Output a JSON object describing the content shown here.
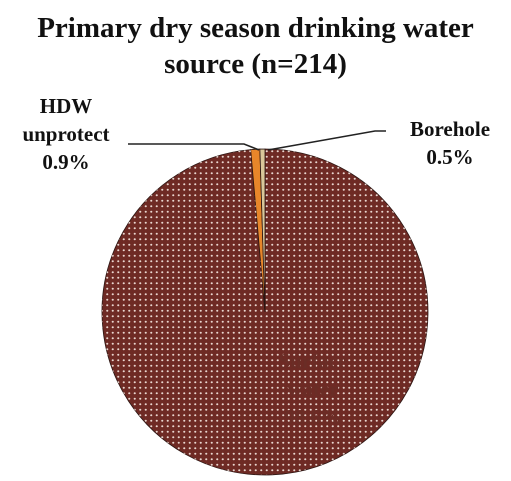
{
  "chart_data": {
    "type": "pie",
    "title_lines": [
      "Primary dry season drinking water",
      "source (n=214)"
    ],
    "slices": [
      {
        "name": "Surface water",
        "label_lines": [
          "Surface",
          "water",
          "98.6%"
        ],
        "value": 98.6,
        "color": "#6e2a24"
      },
      {
        "name": "HDW unprotect",
        "label_lines": [
          "HDW",
          "unprotect",
          "0.9%"
        ],
        "value": 0.9,
        "color": "#e8862a"
      },
      {
        "name": "Borehole",
        "label_lines": [
          "Borehole",
          "0.5%"
        ],
        "value": 0.5,
        "color": "#d9c79a"
      }
    ],
    "start_angle_deg": 90
  }
}
